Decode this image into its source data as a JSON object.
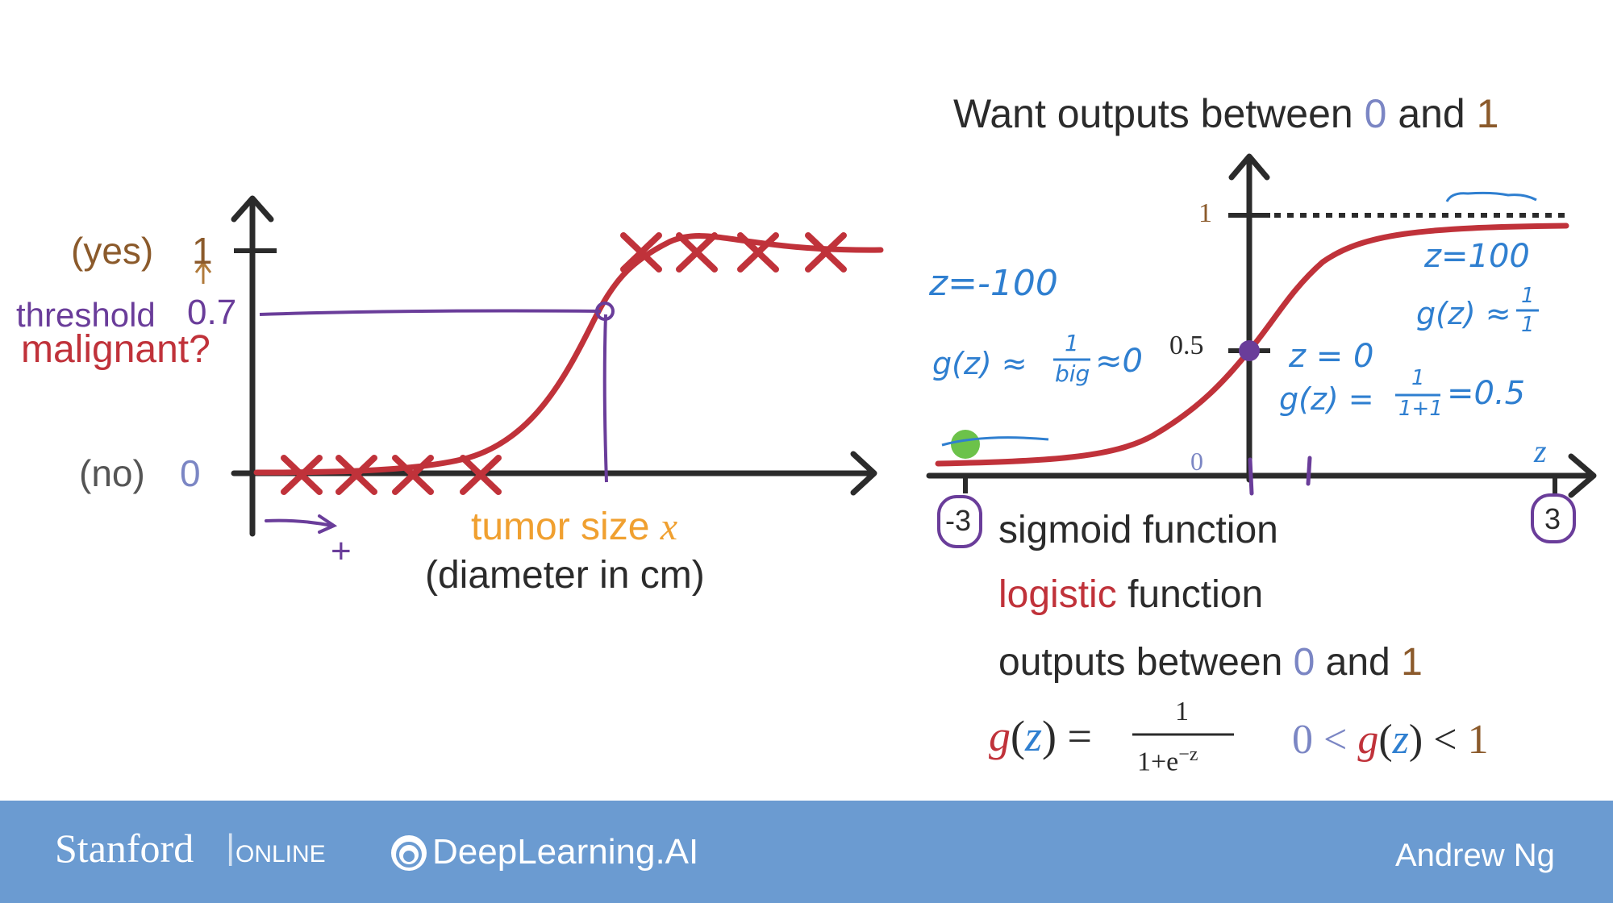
{
  "colors": {
    "dark": "#2b2b2b",
    "curve_red": "#c0323a",
    "axis": "#2b2b2b",
    "purple_annotation": "#6a3d9a",
    "blue_annotation": "#2f7fd0",
    "orange": "#f0a030",
    "brown": "#8b5a2b",
    "green_dot": "#6cc24a",
    "footer_bg": "#6b9bd1"
  },
  "left_chart": {
    "yes_label": "(yes)",
    "yes_value": "1",
    "threshold_label": "threshold",
    "threshold_value": "0.7",
    "malignant_label": "malignant?",
    "no_label": "(no)",
    "no_value": "0",
    "x_label_1": "tumor size",
    "x_label_var": "x",
    "x_label_2": "(diameter in cm)",
    "plus_sign": "+"
  },
  "right_chart": {
    "title_prefix": "Want outputs between",
    "title_zero": "0",
    "title_and": "and",
    "title_one": "1",
    "y_one": "1",
    "y_half": "0.5",
    "x_zero": "0",
    "z_axis_label": "z",
    "tick_neg": "-3",
    "tick_pos": "3",
    "note_z_neg": "z=-100",
    "note_g_neg_prefix": "g(z) ≈",
    "note_g_neg_num": "1",
    "note_g_neg_den": "big",
    "note_g_neg_suffix": "≈0",
    "note_z_pos": "z=100",
    "note_g_pos_prefix": "g(z) ≈",
    "note_g_pos_num": "1",
    "note_g_pos_den": "1",
    "note_z_zero": "z = 0",
    "note_g_zero_prefix": "g(z) =",
    "note_g_zero_num": "1",
    "note_g_zero_den": "1+1",
    "note_g_zero_suffix": "=0.5"
  },
  "descriptions": {
    "sigmoid": "sigmoid function",
    "logistic_word": "logistic",
    "function_word": "function",
    "outputs_prefix": "outputs between",
    "outputs_zero": "0",
    "outputs_and": "and",
    "outputs_one": "1"
  },
  "formula": {
    "g": "g",
    "z": "z",
    "equals": "=",
    "numerator": "1",
    "denominator_base": "1+e",
    "denominator_exp": "−z",
    "range_zero": "0",
    "range_lt": "<",
    "range_one": "1"
  },
  "footer": {
    "stanford": "Stanford",
    "online": "ONLINE",
    "deeplearning": "DeepLearning.AI",
    "author": "Andrew Ng"
  }
}
